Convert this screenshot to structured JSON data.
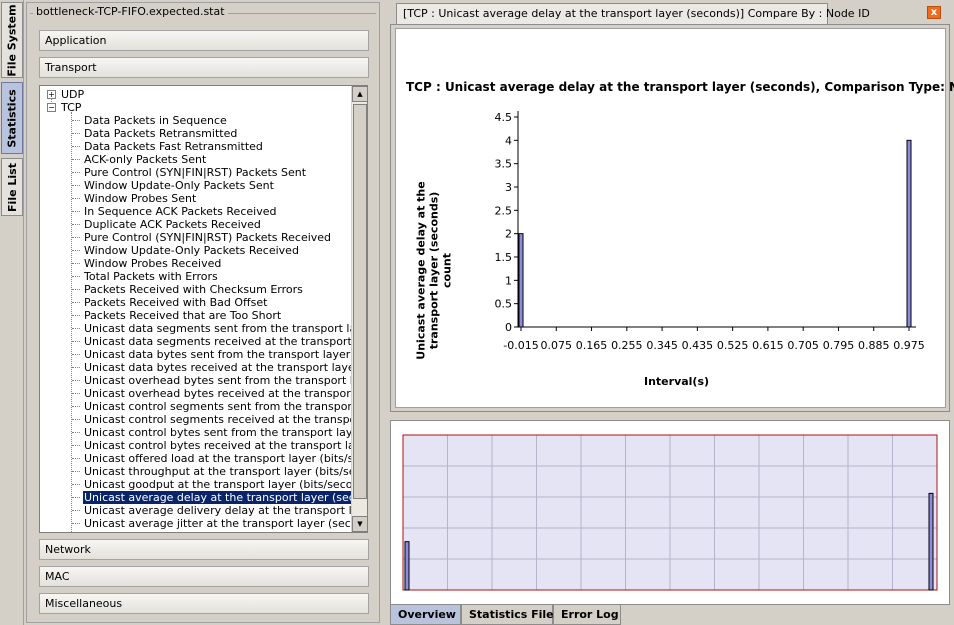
{
  "side_tabs": [
    "File System",
    "Statistics",
    "File List"
  ],
  "file_title": "bottleneck-TCP-FIFO.expected.stat",
  "groups_top": [
    "Application",
    "Transport"
  ],
  "groups_bottom": [
    "Network",
    "MAC",
    "Miscellaneous"
  ],
  "tree": {
    "udp": "UDP",
    "tcp": "TCP",
    "items": [
      "Data Packets in Sequence",
      "Data Packets Retransmitted",
      "Data Packets Fast Retransmitted",
      "ACK-only Packets Sent",
      "Pure Control (SYN|FIN|RST) Packets Sent",
      "Window Update-Only Packets Sent",
      "Window Probes Sent",
      "In Sequence ACK Packets Received",
      "Duplicate ACK Packets Received",
      "Pure Control (SYN|FIN|RST) Packets Received",
      "Window Update-Only Packets Received",
      "Window Probes Received",
      "Total Packets with Errors",
      "Packets Received with Checksum Errors",
      "Packets Received with Bad Offset",
      "Packets Received that are Too Short",
      "Unicast data segments sent from the transport layer...",
      "Unicast data segments received at the transport laye...",
      "Unicast data bytes sent from the transport layer (by...",
      "Unicast data bytes received at the transport layer (...",
      "Unicast overhead bytes sent from the transport laye...",
      "Unicast overhead bytes received at the transport la...",
      "Unicast control segments sent from the transport lay...",
      "Unicast control segments received at the transport l...",
      "Unicast control bytes sent from the transport layer (...",
      "Unicast control bytes received at the transport layer...",
      "Unicast offered load at the transport layer (bits/sec...",
      "Unicast throughput at the transport layer (bits/seco...",
      "Unicast goodput at the transport layer (bits/second)",
      "Unicast average delay at the transport layer (secon...",
      "Unicast average delivery delay at the transport laye...",
      "Unicast average jitter at the transport layer (seconds)"
    ],
    "selected_index": 29
  },
  "chart_tab_label": "[TCP :  Unicast average delay at the transport layer (seconds)] Compare By : Node ID",
  "close_label": "x",
  "bottom_tabs": [
    "Overview",
    "Statistics File",
    "Error Log"
  ],
  "chart_data": {
    "type": "bar",
    "title": "TCP :  Unicast average delay at the transport layer (seconds), Comparison Type: Node",
    "xlabel": "Interval(s)",
    "ylabel": "Unicast average delay at the transport layer (seconds) count",
    "x_ticks": [
      "-0.015",
      "0.075",
      "0.165",
      "0.255",
      "0.345",
      "0.435",
      "0.525",
      "0.615",
      "0.705",
      "0.795",
      "0.885",
      "0.975"
    ],
    "y_ticks": [
      "0",
      "0.5",
      "1",
      "1.5",
      "2",
      "2.5",
      "3",
      "3.5",
      "4",
      "4.5"
    ],
    "ylim": [
      0,
      4.5
    ],
    "bars": [
      {
        "x": "-0.015",
        "value": 2
      },
      {
        "x": "0.975",
        "value": 4
      }
    ],
    "bar_color": "#8c8cdc",
    "grid": true
  }
}
